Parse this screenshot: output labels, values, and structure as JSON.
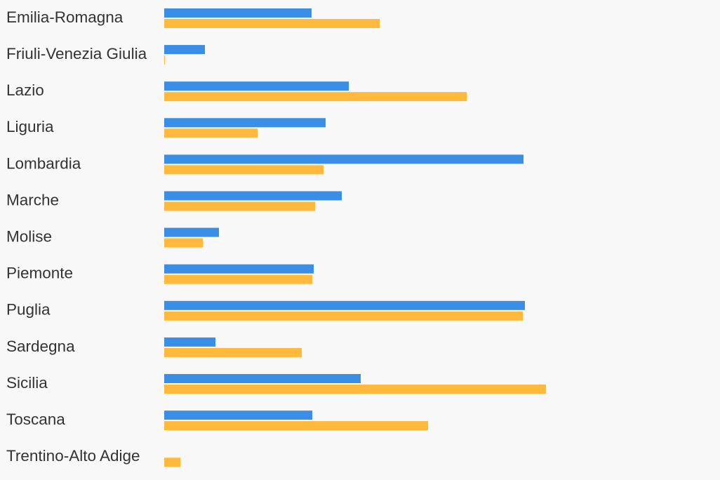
{
  "chart_data": {
    "type": "bar",
    "orientation": "horizontal",
    "categories": [
      "Emilia-Romagna",
      "Friuli-Venezia Giulia",
      "Lazio",
      "Liguria",
      "Lombardia",
      "Marche",
      "Molise",
      "Piemonte",
      "Puglia",
      "Sardegna",
      "Sicilia",
      "Toscana",
      "Trentino-Alto Adige"
    ],
    "series": [
      {
        "color": "#3a8ee6",
        "values": [
          210,
          58,
          263,
          230,
          512,
          253,
          78,
          213,
          514,
          73,
          280,
          211,
          0
        ]
      },
      {
        "color": "#ffb93c",
        "values": [
          307,
          1,
          431,
          133,
          227,
          215,
          55,
          211,
          511,
          196,
          544,
          376,
          23
        ]
      }
    ],
    "xlim": [
      0,
      560
    ],
    "grid": false,
    "legend": "none",
    "title": "",
    "xlabel": "",
    "ylabel": ""
  }
}
